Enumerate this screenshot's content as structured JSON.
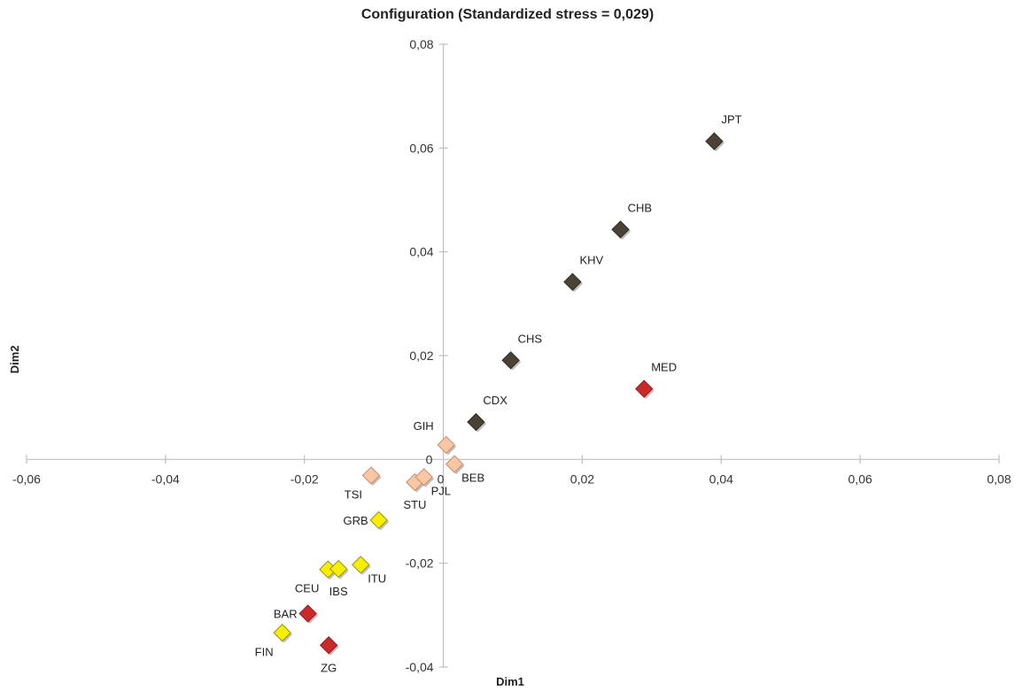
{
  "chart_data": {
    "type": "scatter",
    "title": "Configuration (Standardized stress = 0,029)",
    "xlabel": "Dim1",
    "ylabel": "Dim2",
    "xlim": [
      -0.06,
      0.08
    ],
    "ylim": [
      -0.04,
      0.08
    ],
    "x_ticks": [
      {
        "value": -0.06,
        "label": "-0,06"
      },
      {
        "value": -0.04,
        "label": "-0,04"
      },
      {
        "value": -0.02,
        "label": "-0,02"
      },
      {
        "value": 0.02,
        "label": "0,02"
      },
      {
        "value": 0.04,
        "label": "0,04"
      },
      {
        "value": 0.06,
        "label": "0,06"
      },
      {
        "value": 0.08,
        "label": "0,08"
      }
    ],
    "y_ticks": [
      {
        "value": 0.08,
        "label": "0,08"
      },
      {
        "value": 0.06,
        "label": "0,06"
      },
      {
        "value": 0.04,
        "label": "0,04"
      },
      {
        "value": 0.02,
        "label": "0,02"
      },
      {
        "value": -0.02,
        "label": "-0,02"
      },
      {
        "value": -0.04,
        "label": "-0,04"
      }
    ],
    "origin_labels": {
      "x": "0",
      "y": "0"
    },
    "grid": false,
    "marker": "diamond",
    "colors": {
      "dark": "#4a4234",
      "red": "#cc2a2a",
      "peach": "#f7c7a6",
      "yellow": "#f7ee00",
      "axis": "#bfbfbf"
    },
    "points": [
      {
        "label": "JPT",
        "x": 0.039,
        "y": 0.0613,
        "color": "dark",
        "label_pos": "above-right"
      },
      {
        "label": "CHB",
        "x": 0.0255,
        "y": 0.0443,
        "color": "dark",
        "label_pos": "above-right"
      },
      {
        "label": "KHV",
        "x": 0.0186,
        "y": 0.0342,
        "color": "dark",
        "label_pos": "above-right"
      },
      {
        "label": "CHS",
        "x": 0.0097,
        "y": 0.0191,
        "color": "dark",
        "label_pos": "above-right"
      },
      {
        "label": "CDX",
        "x": 0.0047,
        "y": 0.0072,
        "color": "dark",
        "label_pos": "above-right"
      },
      {
        "label": "MED",
        "x": 0.0289,
        "y": 0.0136,
        "color": "red",
        "label_pos": "above-right"
      },
      {
        "label": "GIH",
        "x": 0.0004,
        "y": 0.0028,
        "color": "peach",
        "label_pos": "above-left"
      },
      {
        "label": "BEB",
        "x": 0.0016,
        "y": -0.0009,
        "color": "peach",
        "label_pos": "below-right"
      },
      {
        "label": "TSI",
        "x": -0.0104,
        "y": -0.0031,
        "color": "peach",
        "label_pos": "below-left"
      },
      {
        "label": "STU",
        "x": -0.0041,
        "y": -0.0044,
        "color": "peach",
        "label_pos": "below"
      },
      {
        "label": "PJL",
        "x": -0.0028,
        "y": -0.0034,
        "color": "peach",
        "label_pos": "below-right"
      },
      {
        "label": "GRB",
        "x": -0.0093,
        "y": -0.0117,
        "color": "yellow",
        "label_pos": "left"
      },
      {
        "label": "CEU",
        "x": -0.0166,
        "y": -0.0212,
        "color": "yellow",
        "label_pos": "below-left"
      },
      {
        "label": "IBS",
        "x": -0.0151,
        "y": -0.0211,
        "color": "yellow",
        "label_pos": "below"
      },
      {
        "label": "ITU",
        "x": -0.0119,
        "y": -0.0203,
        "color": "yellow",
        "label_pos": "below-right"
      },
      {
        "label": "BAR",
        "x": -0.0195,
        "y": -0.0297,
        "color": "red",
        "label_pos": "left"
      },
      {
        "label": "FIN",
        "x": -0.0232,
        "y": -0.0334,
        "color": "yellow",
        "label_pos": "below-left"
      },
      {
        "label": "ZG",
        "x": -0.0165,
        "y": -0.0358,
        "color": "red",
        "label_pos": "below"
      }
    ]
  }
}
